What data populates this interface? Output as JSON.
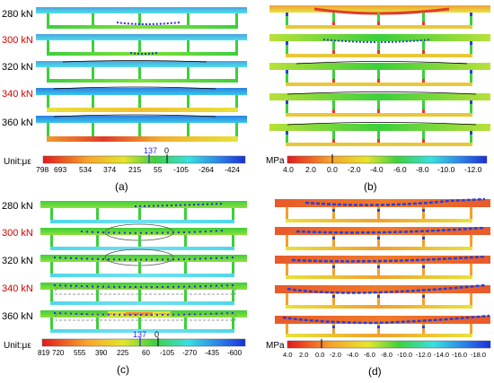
{
  "colors": {
    "black_label": "#000000",
    "red_label": "#d40000",
    "blue_annotation": "#2b2bd4",
    "deck_blue": "#4aa3e0",
    "deck_cyan": "#4fe0e8",
    "deck_green": "#3ccf3c",
    "deck_yellow": "#e8e23a",
    "deck_orange": "#f09a2a",
    "deck_red": "#e33b2a"
  },
  "panel_a": {
    "caption": "(a)",
    "loads": [
      {
        "label": "280 kN",
        "color": "black"
      },
      {
        "label": "300 kN",
        "color": "red"
      },
      {
        "label": "320 kN",
        "color": "black"
      },
      {
        "label": "340 kN",
        "color": "red"
      },
      {
        "label": "360 kN",
        "color": "black"
      }
    ],
    "unit": "Unit:με",
    "marker_value": "137",
    "zero_label": "0",
    "ticks": [
      "798",
      "693",
      "534",
      "374",
      "215",
      "55",
      "-105",
      "-264",
      "-424"
    ]
  },
  "panel_b": {
    "caption": "(b)",
    "unit": "MPa",
    "ticks": [
      "4.0",
      "2.0",
      "0.0",
      "-2.0",
      "-4.0",
      "-6.0",
      "-8.0",
      "-10.0",
      "-12.0"
    ]
  },
  "panel_c": {
    "caption": "(c)",
    "loads": [
      {
        "label": "280 kN",
        "color": "black"
      },
      {
        "label": "300 kN",
        "color": "red"
      },
      {
        "label": "320 kN",
        "color": "black"
      },
      {
        "label": "340 kN",
        "color": "red"
      },
      {
        "label": "360 kN",
        "color": "black"
      }
    ],
    "unit": "Unit:με",
    "marker_value": "137",
    "zero_label": "0",
    "ticks": [
      "819",
      "720",
      "555",
      "390",
      "225",
      "60",
      "-105",
      "-270",
      "-435",
      "-600"
    ]
  },
  "panel_d": {
    "caption": "(d)",
    "unit": "MPa",
    "ticks": [
      "4.0",
      "2.0",
      "0.0",
      "-2.0",
      "-4.0",
      "-6.0",
      "-8.0",
      "-10.0",
      "-12.0",
      "-14.0",
      "-16.0",
      "-18.0"
    ]
  }
}
